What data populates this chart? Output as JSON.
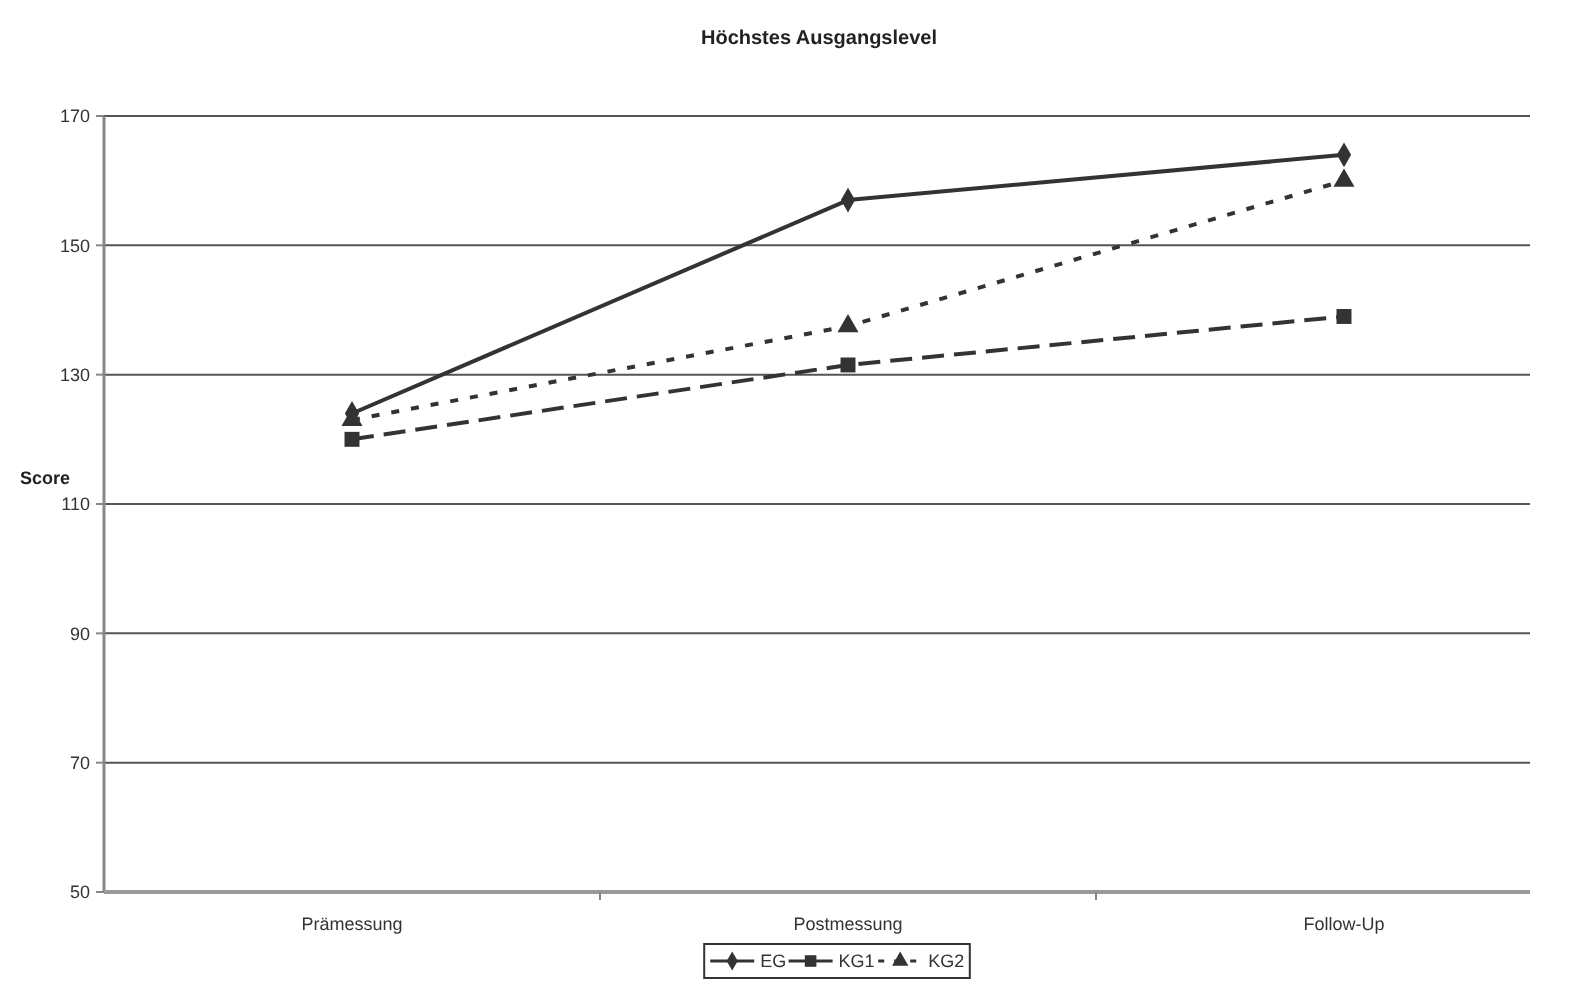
{
  "chart_data": {
    "type": "line",
    "title": "Höchstes Ausgangslevel",
    "ylabel": "Score",
    "categories": [
      "Prämessung",
      "Postmessung",
      "Follow-Up"
    ],
    "series": [
      {
        "name": "EG",
        "color": "#333333",
        "values": [
          124,
          157,
          164
        ],
        "marker": "diamond",
        "line_style": "solid"
      },
      {
        "name": "KG1",
        "color": "#333333",
        "values": [
          120,
          131.5,
          139
        ],
        "marker": "square",
        "line_style": "dashed"
      },
      {
        "name": "KG2",
        "color": "#333333",
        "values": [
          123,
          137.5,
          160
        ],
        "marker": "triangle",
        "line_style": "dotted"
      }
    ],
    "ylim": [
      50,
      170
    ],
    "yticks": [
      50,
      70,
      90,
      110,
      130,
      150,
      170
    ],
    "grid": "y",
    "legend": "bottom"
  }
}
